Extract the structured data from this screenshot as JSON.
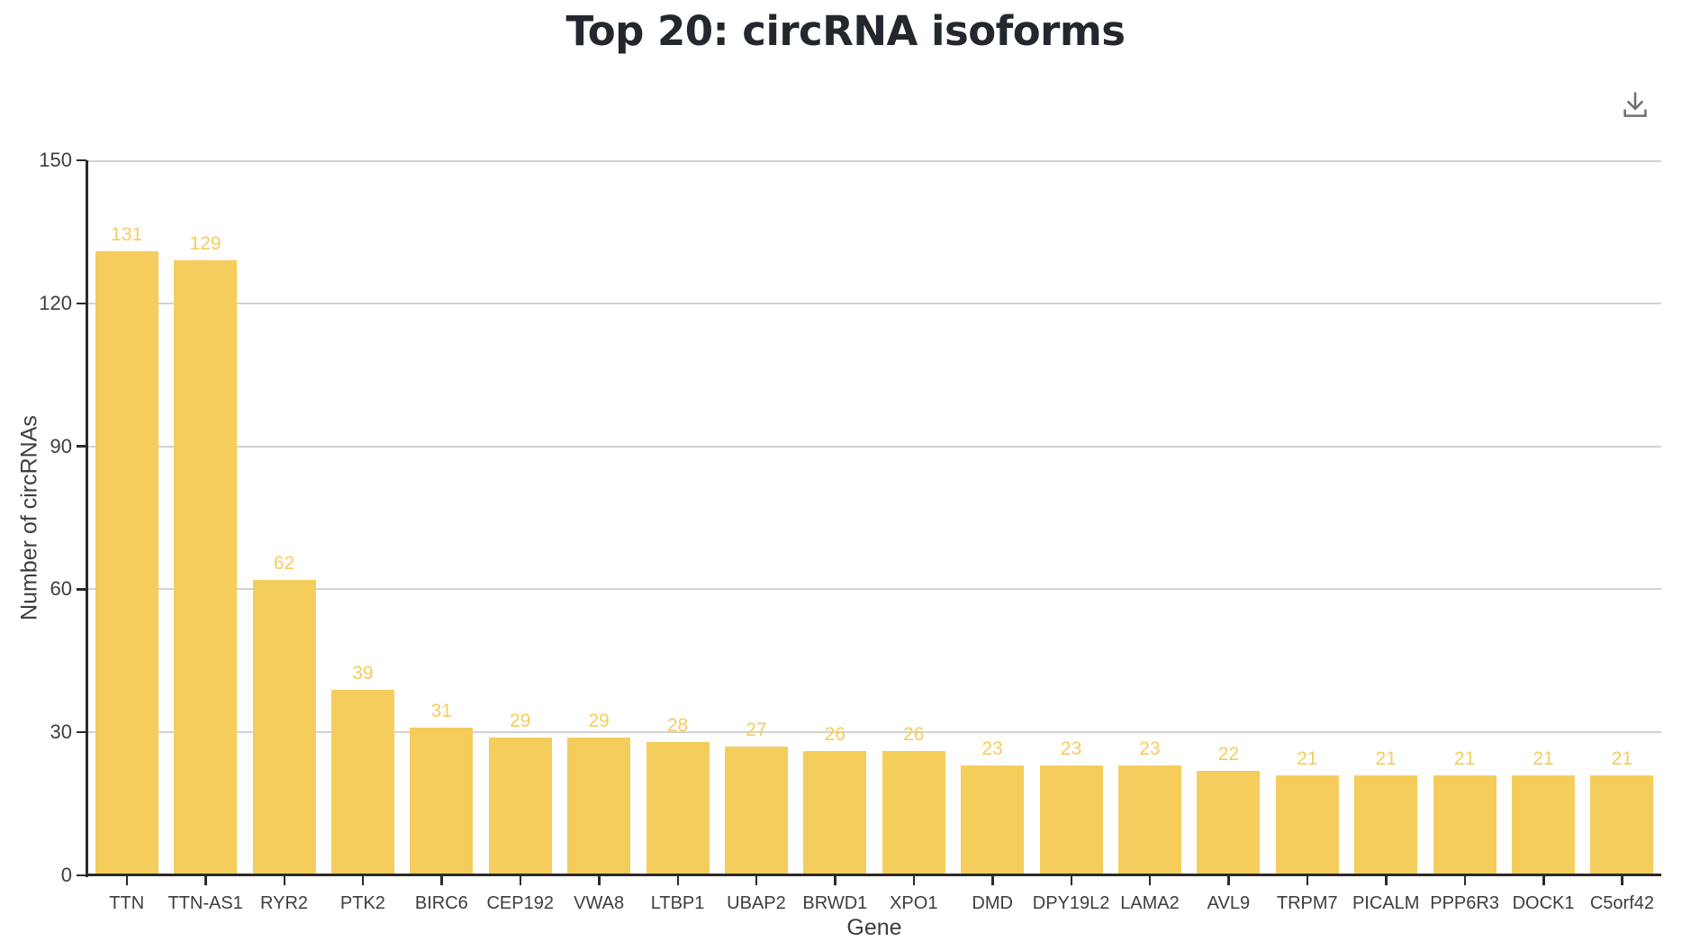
{
  "chart_data": {
    "type": "bar",
    "title": "Top 20: circRNA isoforms",
    "xlabel": "Gene",
    "ylabel": "Number of circRNAs",
    "categories": [
      "TTN",
      "TTN-AS1",
      "RYR2",
      "PTK2",
      "BIRC6",
      "CEP192",
      "VWA8",
      "LTBP1",
      "UBAP2",
      "BRWD1",
      "XPO1",
      "DMD",
      "DPY19L2",
      "LAMA2",
      "AVL9",
      "TRPM7",
      "PICALM",
      "PPP6R3",
      "DOCK1",
      "C5orf42"
    ],
    "values": [
      131,
      129,
      62,
      39,
      31,
      29,
      29,
      28,
      27,
      26,
      26,
      23,
      23,
      23,
      22,
      21,
      21,
      21,
      21,
      21
    ],
    "value_labels_shown": true,
    "ylim": [
      0,
      150
    ],
    "yticks": [
      0,
      30,
      60,
      90,
      120,
      150
    ],
    "grid": "horizontal-only",
    "legend": "none",
    "bar_color": "#F5CD5C",
    "value_label_color": "#F5CD5C"
  },
  "toolbar": {
    "download_icon": "download-icon"
  },
  "colors": {
    "bar": "#F5CD5C",
    "grid": "#D2D2D2",
    "axis": "#2B2B2B",
    "tick_text": "#3D3D3D",
    "title": "#23272E",
    "icon": "#6E6E6E",
    "background": "#FFFFFF"
  }
}
